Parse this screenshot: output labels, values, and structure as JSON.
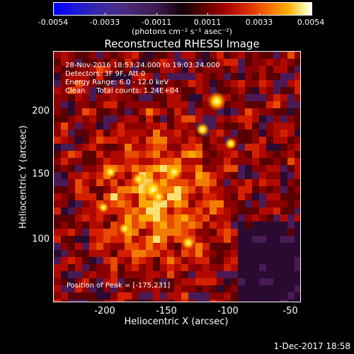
{
  "colorbar": {
    "tick_labels": [
      "-0.0054",
      "-0.0033",
      "-0.0011",
      "0.0011",
      "0.0033",
      "0.0054"
    ],
    "unit_label": "(photons cm⁻² s⁻¹ asec⁻²)"
  },
  "plot": {
    "title": "Reconstructed RHESSI Image",
    "xlabel": "Heliocentric X (arcsec)",
    "ylabel": "Heliocentric Y (arcsec)",
    "x_ticks": [
      "-200",
      "-150",
      "-100",
      "-50"
    ],
    "y_ticks": [
      "200",
      "150",
      "100"
    ],
    "annotations": {
      "time_range": "28-Nov-2016 18:53:24.000 to 19:03:24.000",
      "detectors": "Detectors: 3F 9F, Att 0",
      "energy": "Energy Range: 6.0 - 12.0 keV",
      "clean": "Clean     Total counts: 1.24E+04",
      "peak": "Position of Peak = [-175,231]"
    }
  },
  "timestamp": "1-Dec-2017 18:58"
}
